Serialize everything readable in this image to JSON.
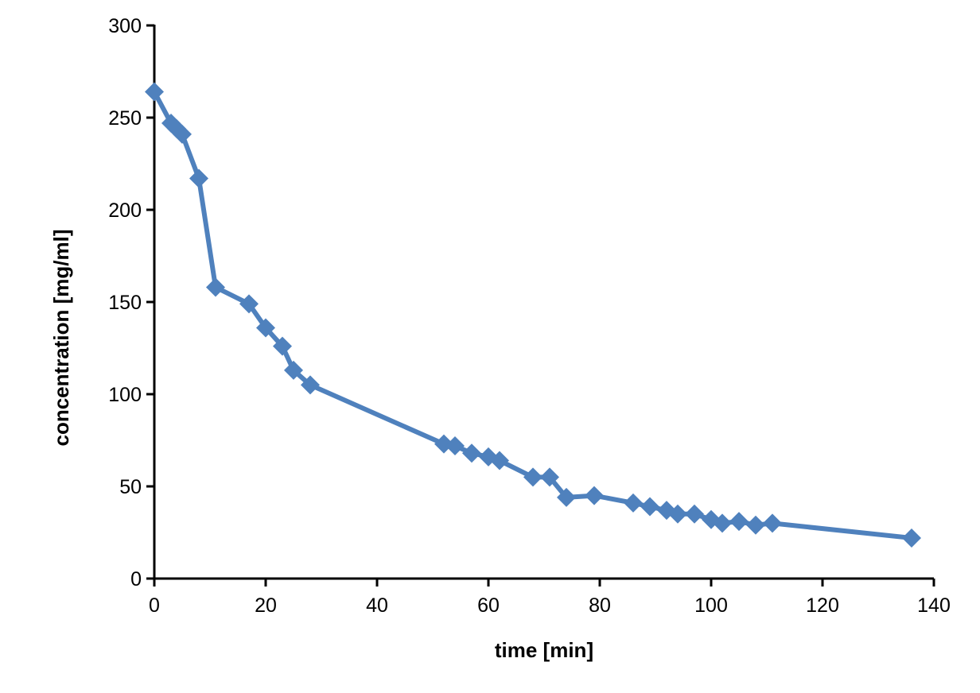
{
  "chart_data": {
    "type": "line",
    "title": "",
    "xlabel": "time [min]",
    "ylabel": "concentration [mg/ml]",
    "xlim": [
      0,
      140
    ],
    "ylim": [
      0,
      300
    ],
    "xticks": [
      0,
      20,
      40,
      60,
      80,
      100,
      120,
      140
    ],
    "yticks": [
      0,
      50,
      100,
      150,
      200,
      250,
      300
    ],
    "grid": false,
    "legend": "none",
    "series": [
      {
        "name": "concentration",
        "color": "#4F81BD",
        "marker": "diamond",
        "x": [
          0,
          3,
          4,
          5,
          8,
          11,
          17,
          20,
          23,
          25,
          28,
          52,
          54,
          57,
          60,
          62,
          68,
          71,
          74,
          79,
          86,
          89,
          92,
          94,
          97,
          100,
          102,
          105,
          108,
          111,
          136
        ],
        "y": [
          264,
          247,
          244,
          241,
          217,
          158,
          149,
          136,
          126,
          113,
          105,
          73,
          72,
          68,
          66,
          64,
          55,
          55,
          44,
          45,
          41,
          39,
          37,
          35,
          35,
          32,
          30,
          31,
          29,
          30,
          22
        ]
      }
    ]
  }
}
